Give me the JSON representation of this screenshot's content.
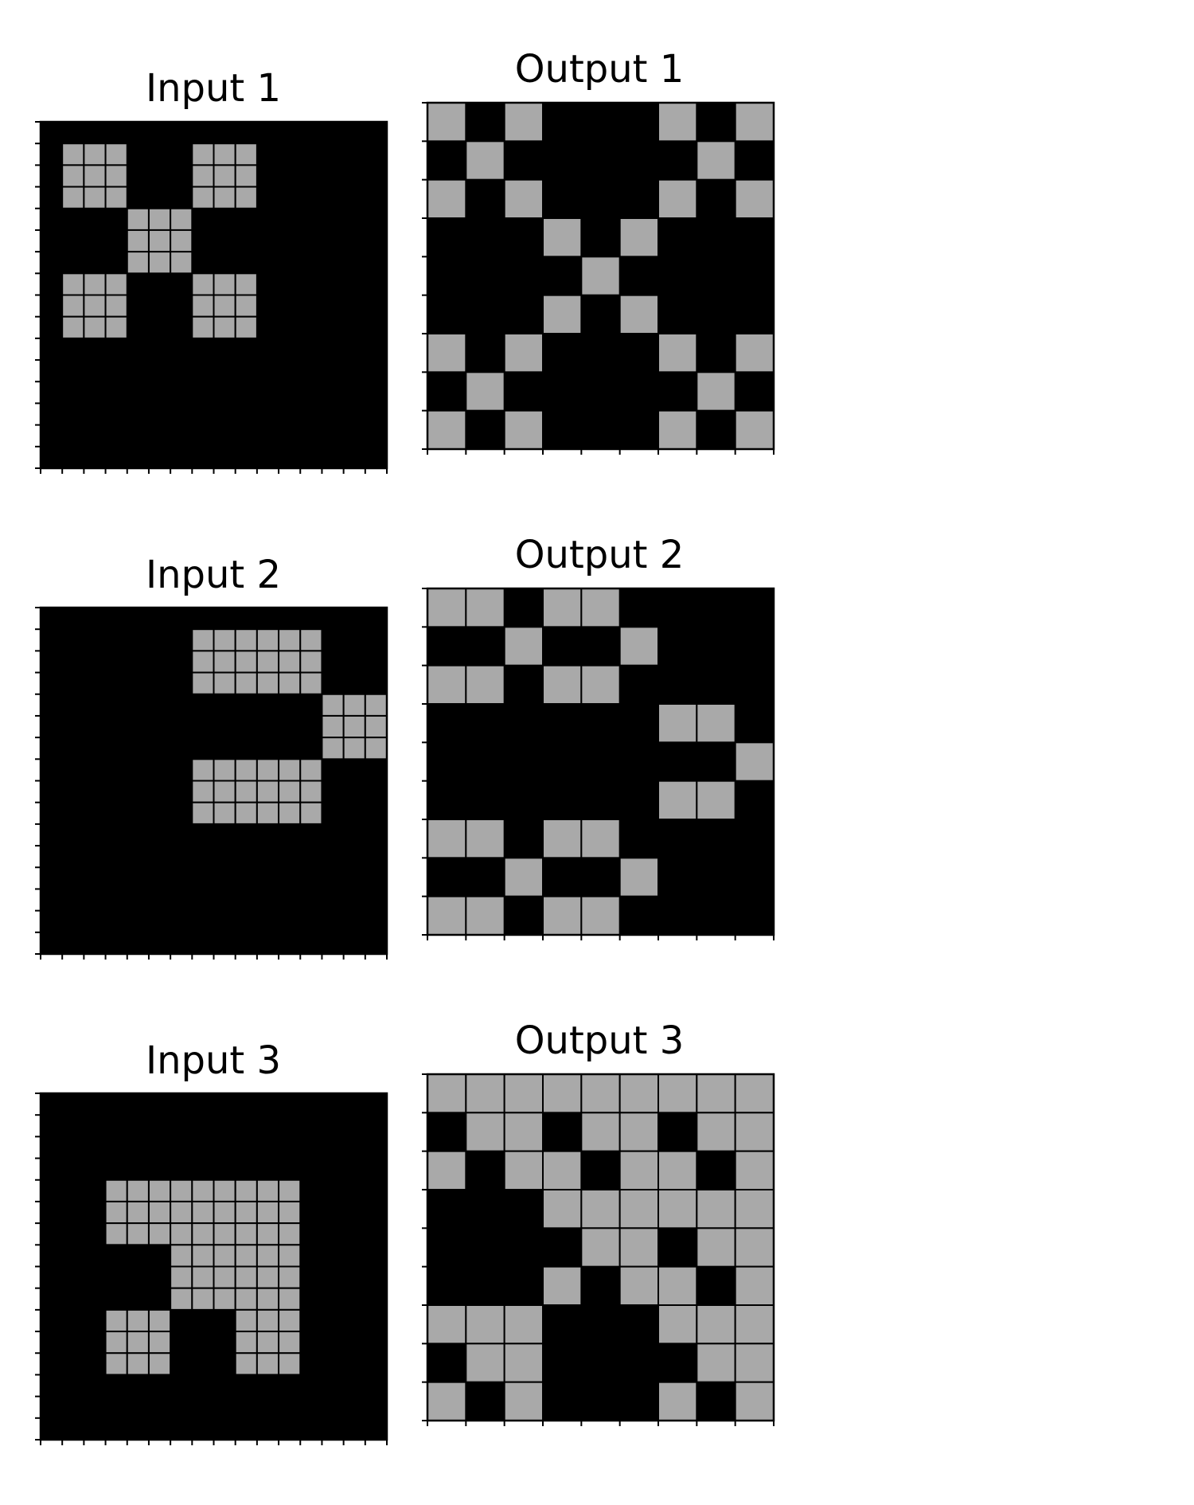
{
  "colors": {
    "background": "#000000",
    "filled": "#a9a9a9",
    "gridline": "#000000"
  },
  "pairs": [
    {
      "input": {
        "title": "Input 1",
        "rows": [
          "0000000000000000",
          "0111000111000000",
          "0111000111000000",
          "0111000111000000",
          "0000111000000000",
          "0000111000000000",
          "0000111000000000",
          "0111000111000000",
          "0111000111000000",
          "0111000111000000",
          "0000000000000000",
          "0000000000000000",
          "0000000000000000",
          "0000000000000000",
          "0000000000000000",
          "0000000000000000"
        ]
      },
      "output": {
        "title": "Output 1",
        "rows": [
          "101000101",
          "010000010",
          "101000101",
          "000101000",
          "000010000",
          "000101000",
          "101000101",
          "010000010",
          "101000101"
        ]
      }
    },
    {
      "input": {
        "title": "Input 2",
        "rows": [
          "0000000000000000",
          "0000000111111000",
          "0000000111111000",
          "0000000111111000",
          "0000000000000111",
          "0000000000000111",
          "0000000000000111",
          "0000000111111000",
          "0000000111111000",
          "0000000111111000",
          "0000000000000000",
          "0000000000000000",
          "0000000000000000",
          "0000000000000000",
          "0000000000000000",
          "0000000000000000"
        ]
      },
      "output": {
        "title": "Output 2",
        "rows": [
          "110110000",
          "001001000",
          "110110000",
          "000000110",
          "000000001",
          "000000110",
          "110110000",
          "001001000",
          "110110000"
        ]
      }
    },
    {
      "input": {
        "title": "Input 3",
        "rows": [
          "0000000000000000",
          "0000000000000000",
          "0000000000000000",
          "0000000000000000",
          "0001111111110000",
          "0001111111110000",
          "0001111111110000",
          "0000001111110000",
          "0000001111110000",
          "0000001111110000",
          "0001110001110000",
          "0001110001110000",
          "0001110001110000",
          "0000000000000000",
          "0000000000000000",
          "0000000000000000"
        ]
      },
      "output": {
        "title": "Output 3",
        "rows": [
          "111111111",
          "011011011",
          "101101101",
          "000111111",
          "000011011",
          "000101101",
          "111000111",
          "011000011",
          "101000101"
        ]
      }
    }
  ]
}
